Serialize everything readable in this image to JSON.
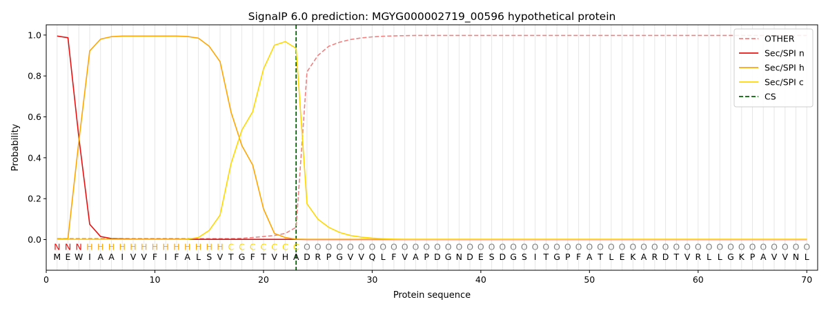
{
  "chart_data": {
    "type": "line",
    "title": "SignalP 6.0 prediction: MGYG000002719_00596 hypothetical protein",
    "xlabel": "Protein sequence",
    "ylabel": "Probability",
    "xlim": [
      0,
      71
    ],
    "ylim": [
      -0.15,
      1.05
    ],
    "xticks": [
      0,
      10,
      20,
      30,
      40,
      50,
      60,
      70
    ],
    "yticks": [
      0.0,
      0.2,
      0.4,
      0.6,
      0.8,
      1.0
    ],
    "ytick_labels": [
      "0.0",
      "0.2",
      "0.4",
      "0.6",
      "0.8",
      "1.0"
    ],
    "grid": "vertical lines at every residue",
    "legend_position": "top-right",
    "sequence": [
      "M",
      "E",
      "W",
      "I",
      "A",
      "A",
      "I",
      "V",
      "V",
      "F",
      "I",
      "F",
      "A",
      "L",
      "S",
      "V",
      "T",
      "G",
      "F",
      "T",
      "V",
      "H",
      "A",
      "D",
      "R",
      "P",
      "G",
      "V",
      "V",
      "Q",
      "L",
      "F",
      "V",
      "A",
      "P",
      "D",
      "G",
      "N",
      "D",
      "E",
      "S",
      "D",
      "G",
      "S",
      "I",
      "T",
      "G",
      "P",
      "F",
      "A",
      "T",
      "L",
      "E",
      "K",
      "A",
      "R",
      "D",
      "T",
      "V",
      "R",
      "L",
      "L",
      "G",
      "K",
      "P",
      "A",
      "V",
      "V",
      "N",
      "L"
    ],
    "labels": [
      "N",
      "N",
      "N",
      "H",
      "H",
      "H",
      "H",
      "H",
      "H",
      "H",
      "H",
      "H",
      "H",
      "H",
      "H",
      "H",
      "C",
      "C",
      "C",
      "C",
      "C",
      "C",
      "C",
      "O",
      "O",
      "O",
      "O",
      "O",
      "O",
      "O",
      "O",
      "O",
      "O",
      "O",
      "O",
      "O",
      "O",
      "O",
      "O",
      "O",
      "O",
      "O",
      "O",
      "O",
      "O",
      "O",
      "O",
      "O",
      "O",
      "O",
      "O",
      "O",
      "O",
      "O",
      "O",
      "O",
      "O",
      "O",
      "O",
      "O",
      "O",
      "O",
      "O",
      "O",
      "O",
      "O",
      "O",
      "O",
      "O",
      "O"
    ],
    "label_colors": {
      "N": "#ff0000",
      "H": "#ffa500",
      "C": "#ffd700",
      "O": "#808080"
    },
    "cs_position": 23,
    "series": [
      {
        "name": "OTHER",
        "color": "#f08080",
        "dash": true,
        "values": [
          0.005,
          0.005,
          0.005,
          0.005,
          0.005,
          0.005,
          0.005,
          0.005,
          0.005,
          0.005,
          0.005,
          0.005,
          0.005,
          0.005,
          0.005,
          0.005,
          0.005,
          0.006,
          0.01,
          0.015,
          0.02,
          0.03,
          0.06,
          0.82,
          0.9,
          0.945,
          0.965,
          0.978,
          0.986,
          0.991,
          0.994,
          0.996,
          0.997,
          0.998,
          0.998,
          0.998,
          0.998,
          0.998,
          0.998,
          0.998,
          0.998,
          0.998,
          0.998,
          0.998,
          0.998,
          0.998,
          0.998,
          0.998,
          0.998,
          0.998,
          0.998,
          0.998,
          0.998,
          0.998,
          0.998,
          0.998,
          0.998,
          0.998,
          0.998,
          0.998,
          0.998,
          0.998,
          0.998,
          0.998,
          0.998,
          0.998,
          0.998,
          0.998,
          0.998,
          0.998
        ]
      },
      {
        "name": "Sec/SPI n",
        "color": "#e81010",
        "dash": false,
        "values": [
          0.995,
          0.987,
          0.5,
          0.075,
          0.015,
          0.005,
          0.003,
          0.002,
          0.002,
          0.002,
          0.002,
          0.002,
          0.002,
          0.001,
          0.001,
          0.001,
          0.001,
          0.001,
          0.001,
          0.001,
          0.001,
          0.001,
          0.001,
          0,
          0,
          0,
          0,
          0,
          0,
          0,
          0,
          0,
          0,
          0,
          0,
          0,
          0,
          0,
          0,
          0,
          0,
          0,
          0,
          0,
          0,
          0,
          0,
          0,
          0,
          0,
          0,
          0,
          0,
          0,
          0,
          0,
          0,
          0,
          0,
          0,
          0,
          0,
          0,
          0,
          0,
          0,
          0,
          0,
          0,
          0
        ]
      },
      {
        "name": "Sec/SPI h",
        "color": "#ffa500",
        "dash": false,
        "values": [
          0.003,
          0.005,
          0.48,
          0.922,
          0.98,
          0.992,
          0.995,
          0.995,
          0.995,
          0.995,
          0.995,
          0.995,
          0.993,
          0.985,
          0.945,
          0.87,
          0.625,
          0.46,
          0.365,
          0.15,
          0.03,
          0.01,
          0.002,
          0.001,
          0.001,
          0.001,
          0.001,
          0.001,
          0.001,
          0.001,
          0.001,
          0.001,
          0.001,
          0.001,
          0.001,
          0.001,
          0.001,
          0.001,
          0.001,
          0.001,
          0.001,
          0.001,
          0.001,
          0.001,
          0.001,
          0.001,
          0.001,
          0.001,
          0.001,
          0.001,
          0.001,
          0.001,
          0.001,
          0.001,
          0.001,
          0.001,
          0.001,
          0.001,
          0.001,
          0.001,
          0.001,
          0.001,
          0.001,
          0.001,
          0.001,
          0.001,
          0.001,
          0.001,
          0.001,
          0.001
        ]
      },
      {
        "name": "Sec/SPI c",
        "color": "#ffd700",
        "dash": false,
        "values": [
          0.001,
          0.001,
          0.001,
          0.001,
          0.001,
          0.001,
          0.001,
          0.001,
          0.001,
          0.001,
          0.001,
          0.001,
          0.002,
          0.01,
          0.045,
          0.12,
          0.37,
          0.535,
          0.625,
          0.835,
          0.95,
          0.968,
          0.935,
          0.175,
          0.1,
          0.06,
          0.035,
          0.02,
          0.012,
          0.007,
          0.004,
          0.002,
          0.001,
          0.001,
          0.001,
          0.001,
          0.001,
          0.001,
          0.001,
          0.001,
          0.001,
          0.001,
          0.001,
          0.001,
          0.001,
          0.001,
          0.001,
          0.001,
          0.001,
          0.001,
          0.001,
          0.001,
          0.001,
          0.001,
          0.001,
          0.001,
          0.001,
          0.001,
          0.001,
          0.001,
          0.001,
          0.001,
          0.001,
          0.001,
          0.001,
          0.001,
          0.001,
          0.001,
          0.001,
          0.001
        ]
      }
    ],
    "cs_legend": {
      "name": "CS",
      "color": "#006400"
    }
  }
}
